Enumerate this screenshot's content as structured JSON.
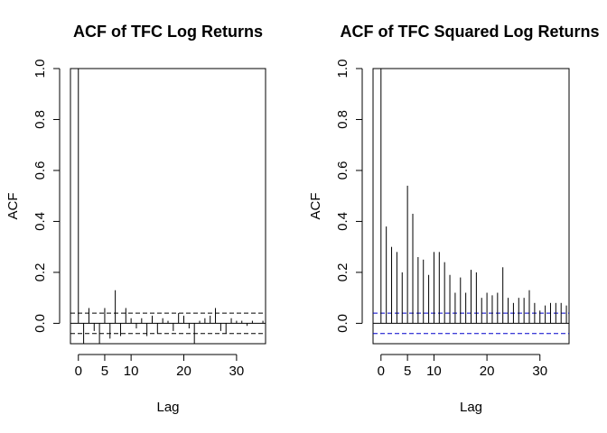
{
  "chart_data": [
    {
      "type": "bar",
      "title": "ACF of TFC Log Returns",
      "xlabel": "Lag",
      "ylabel": "ACF",
      "xlim": [
        -1.5,
        35.5
      ],
      "ylim": [
        -0.08,
        1.0
      ],
      "xticks": [
        0,
        5,
        10,
        20,
        30
      ],
      "yticks": [
        0.0,
        0.2,
        0.4,
        0.6,
        0.8,
        1.0
      ],
      "x": [
        0,
        1,
        2,
        3,
        4,
        5,
        6,
        7,
        8,
        9,
        10,
        11,
        12,
        13,
        14,
        15,
        16,
        17,
        18,
        19,
        20,
        21,
        22,
        23,
        24,
        25,
        26,
        27,
        28,
        29,
        30,
        31,
        32,
        33,
        34,
        35
      ],
      "values": [
        1.0,
        -0.08,
        0.06,
        -0.03,
        -0.08,
        0.06,
        -0.06,
        0.13,
        -0.05,
        0.06,
        0.02,
        -0.02,
        0.02,
        -0.05,
        0.03,
        -0.04,
        0.02,
        0.01,
        -0.03,
        0.04,
        0.03,
        -0.02,
        -0.08,
        0.01,
        0.02,
        0.03,
        0.06,
        -0.03,
        -0.04,
        0.02,
        0.01,
        0.01,
        -0.01,
        0.01,
        0.0,
        0.01
      ],
      "confidence_bound": 0.04,
      "confidence_color": "#000000",
      "grid": false
    },
    {
      "type": "bar",
      "title": "ACF of TFC Squared Log Returns",
      "xlabel": "Lag",
      "ylabel": "ACF",
      "xlim": [
        -1.5,
        35.5
      ],
      "ylim": [
        -0.08,
        1.0
      ],
      "xticks": [
        0,
        5,
        10,
        20,
        30
      ],
      "yticks": [
        0.0,
        0.2,
        0.4,
        0.6,
        0.8,
        1.0
      ],
      "x": [
        0,
        1,
        2,
        3,
        4,
        5,
        6,
        7,
        8,
        9,
        10,
        11,
        12,
        13,
        14,
        15,
        16,
        17,
        18,
        19,
        20,
        21,
        22,
        23,
        24,
        25,
        26,
        27,
        28,
        29,
        30,
        31,
        32,
        33,
        34,
        35
      ],
      "values": [
        1.0,
        0.38,
        0.3,
        0.28,
        0.2,
        0.54,
        0.43,
        0.26,
        0.25,
        0.19,
        0.28,
        0.28,
        0.24,
        0.19,
        0.12,
        0.18,
        0.12,
        0.21,
        0.2,
        0.1,
        0.12,
        0.11,
        0.12,
        0.22,
        0.1,
        0.08,
        0.1,
        0.1,
        0.13,
        0.08,
        0.05,
        0.07,
        0.08,
        0.08,
        0.08,
        0.07
      ],
      "confidence_bound": 0.04,
      "confidence_color": "#0000cc",
      "grid": false
    }
  ]
}
